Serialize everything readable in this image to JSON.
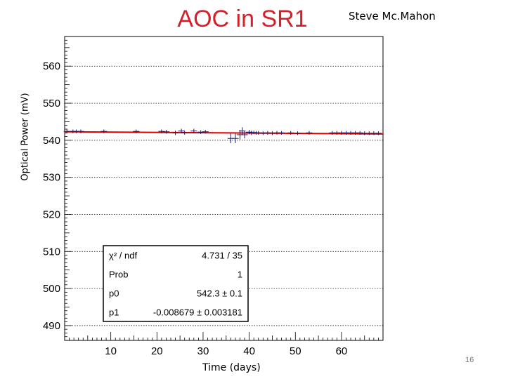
{
  "slide": {
    "title": "AOC in SR1",
    "author": "Steve Mc.Mahon",
    "page_number": "16"
  },
  "chart_data": {
    "type": "scatter",
    "xlabel": "Time (days)",
    "ylabel": "Optical Power (mV)",
    "xlim": [
      0,
      69
    ],
    "ylim": [
      486,
      568
    ],
    "xticks": [
      10,
      20,
      30,
      40,
      50,
      60
    ],
    "yticks": [
      490,
      500,
      510,
      520,
      530,
      540,
      550,
      560
    ],
    "grid": true,
    "series": [
      {
        "x": [
          0.5,
          1.8,
          2.5,
          3.5,
          8.5,
          15.5,
          21,
          22,
          24,
          25.3,
          26,
          28,
          29.5,
          30.5,
          36,
          37,
          38,
          38.5,
          39,
          40,
          40.5,
          41,
          41.5,
          42,
          43,
          44,
          45,
          46,
          47,
          49,
          50.5,
          53,
          58,
          59,
          60,
          61,
          62,
          63,
          64,
          65,
          66,
          67,
          68
        ],
        "y": [
          542.4,
          542.4,
          542.4,
          542.4,
          542.4,
          542.4,
          542.4,
          542.3,
          542.0,
          542.5,
          542.0,
          542.5,
          542.2,
          542.3,
          540.5,
          540.5,
          541.5,
          542.5,
          541.5,
          542.2,
          542.0,
          542.1,
          542.0,
          542.0,
          541.9,
          542.0,
          541.9,
          542.0,
          542.0,
          542.0,
          541.9,
          542.0,
          542.0,
          542.0,
          542.0,
          542.0,
          542.0,
          542.0,
          542.0,
          541.9,
          541.9,
          541.9,
          541.9
        ],
        "yerr": [
          0.5,
          0.5,
          0.5,
          0.5,
          0.5,
          0.5,
          0.5,
          0.5,
          0.6,
          0.6,
          0.5,
          0.6,
          0.5,
          0.5,
          1.3,
          1.3,
          1.3,
          1.0,
          1.0,
          0.6,
          0.6,
          0.5,
          0.5,
          0.5,
          0.5,
          0.5,
          0.5,
          0.5,
          0.5,
          0.5,
          0.5,
          0.5,
          0.5,
          0.5,
          0.5,
          0.5,
          0.5,
          0.5,
          0.5,
          0.5,
          0.5,
          0.5,
          0.5
        ],
        "xerr": 0.7,
        "color": "#1a1a66"
      }
    ],
    "fit": {
      "p0": 542.3,
      "p1": -0.008679,
      "color": "#dd0000"
    },
    "stats_box": {
      "rows": [
        {
          "label": "χ² / ndf",
          "value": "4.731 / 35"
        },
        {
          "label": "Prob",
          "value": "1"
        },
        {
          "label": "p0",
          "value": "542.3 ± 0.1"
        },
        {
          "label": "p1",
          "value": "-0.008679 ± 0.003181"
        }
      ]
    }
  }
}
